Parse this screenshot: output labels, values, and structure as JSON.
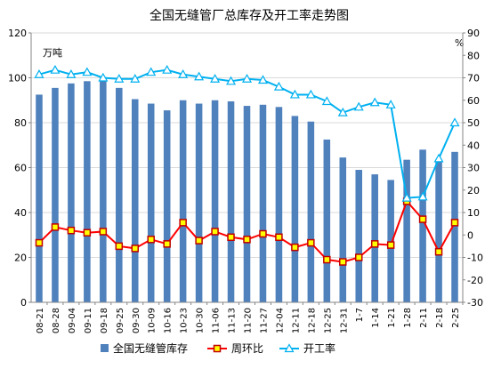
{
  "chart_data": {
    "type": "bar-line-combo",
    "title": "全国无缝管厂总库存及开工率走势图",
    "y_left_unit": "万吨",
    "y_right_unit": "%",
    "y_left_range": [
      0,
      120
    ],
    "y_left_ticks": [
      "0",
      "20",
      "40",
      "60",
      "80",
      "100",
      "120"
    ],
    "y_right_range": [
      -30,
      90
    ],
    "y_right_ticks": [
      "-30",
      "-20",
      "-10",
      "0",
      "10",
      "20",
      "30",
      "40",
      "50",
      "60",
      "70",
      "80",
      "90"
    ],
    "grid": true,
    "legend_position": "bottom",
    "categories": [
      "08-21",
      "08-28",
      "09-04",
      "09-11",
      "09-18",
      "09-25",
      "09-30",
      "10-09",
      "10-16",
      "10-23",
      "10-30",
      "11-06",
      "11-13",
      "11-20",
      "11-27",
      "12-04",
      "12-11",
      "12-18",
      "12-25",
      "12-31",
      "1-7",
      "1-14",
      "1-21",
      "1-28",
      "2-11",
      "2-18",
      "2-25"
    ],
    "series": [
      {
        "name": "全国无缝管库存",
        "type": "bar",
        "axis": "left",
        "color": "#4f81bd",
        "values": [
          92.5,
          95.5,
          97.5,
          98.5,
          99.5,
          95.5,
          90.5,
          88.5,
          85.5,
          90,
          88.5,
          90,
          89.5,
          87.5,
          88,
          87,
          83,
          80.5,
          72.5,
          64.5,
          59,
          57,
          54.5,
          63.5,
          68,
          63.5,
          67
        ]
      },
      {
        "name": "周环比",
        "type": "line",
        "axis": "right",
        "color": "#ff0000",
        "marker_color": "#c00000",
        "values": [
          -3.5,
          3.5,
          2,
          1,
          1.5,
          -5,
          -6,
          -2,
          -4,
          5.5,
          -2.5,
          1.5,
          -1,
          -2,
          0.5,
          -1,
          -5.5,
          -3.5,
          -11,
          -12,
          -10,
          -4,
          -4.5,
          15,
          7,
          -7.5,
          5.5
        ]
      },
      {
        "name": "开工率",
        "type": "line",
        "axis": "right",
        "color": "#00b0f0",
        "marker": "triangle",
        "values": [
          71.5,
          73.5,
          71.5,
          72.5,
          70,
          69.5,
          69.5,
          72.5,
          73.5,
          71.5,
          70.5,
          69.5,
          68.5,
          69.5,
          69,
          66,
          62.5,
          62.5,
          59.5,
          54.5,
          57,
          59,
          58,
          16.5,
          17,
          34,
          50
        ]
      }
    ]
  }
}
